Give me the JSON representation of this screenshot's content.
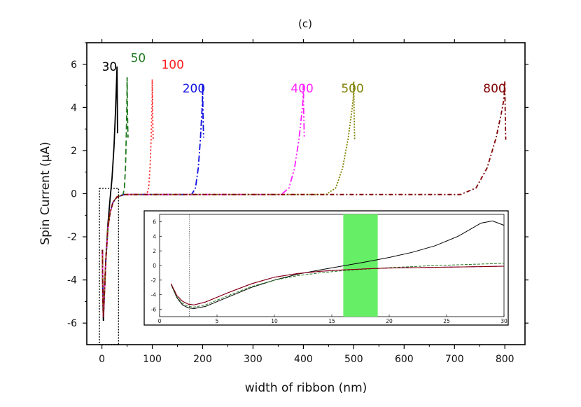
{
  "chart_data": {
    "type": "line",
    "title": "(c)",
    "xlabel": "width of ribbon (nm)",
    "ylabel": "Spin Current (μA)",
    "xlim": [
      -30,
      840
    ],
    "ylim": [
      -7,
      7
    ],
    "xticks": [
      0,
      100,
      200,
      300,
      400,
      500,
      600,
      700,
      800
    ],
    "yticks": [
      -6,
      -4,
      -2,
      0,
      2,
      4,
      6
    ],
    "series": [
      {
        "name": "30",
        "width": 30,
        "color": "#000000",
        "dash": "",
        "label_x": 0.0,
        "label_y": 5.7,
        "peak": 5.9,
        "end": 2.8
      },
      {
        "name": "50",
        "width": 50,
        "color": "#217a1f",
        "dash": "8,4",
        "label_x": 57,
        "label_y": 6.1,
        "peak": 5.4,
        "end": 2.6
      },
      {
        "name": "100",
        "width": 100,
        "color": "#ff2020",
        "dash": "2,3",
        "label_x": 118,
        "label_y": 5.8,
        "peak": 5.3,
        "end": 2.5
      },
      {
        "name": "200",
        "width": 200,
        "color": "#1010e0",
        "dash": "9,3,2,3",
        "label_x": 160,
        "label_y": 4.7,
        "peak": 5.1,
        "end": 2.6
      },
      {
        "name": "400",
        "width": 400,
        "color": "#ff20ff",
        "dash": "9,3,2,3,2,3",
        "label_x": 375,
        "label_y": 4.7,
        "peak": 5.1,
        "end": 2.6
      },
      {
        "name": "500",
        "width": 500,
        "color": "#808000",
        "dash": "2,2",
        "label_x": 475,
        "label_y": 4.7,
        "peak": 5.2,
        "end": 2.5
      },
      {
        "name": "800",
        "width": 800,
        "color": "#800000",
        "dash": "6,3,2,3",
        "label_x": 757,
        "label_y": 4.7,
        "peak": 5.2,
        "end": 2.5
      }
    ],
    "zoom_box": {
      "x": [
        -5,
        33
      ],
      "y": [
        -7,
        0.25
      ]
    },
    "inset": {
      "xlim": [
        0,
        30
      ],
      "ylim": [
        -7,
        7
      ],
      "xticks": [
        0,
        5,
        10,
        15,
        20,
        25,
        30
      ],
      "yticks": [
        -6,
        -4,
        -2,
        0,
        2,
        4,
        6
      ],
      "vline_x": 2.6,
      "highlight_x": [
        16,
        19
      ],
      "highlight_color": "#66ee66",
      "series": [
        {
          "name": "30",
          "color": "#000000",
          "dash": "",
          "x": [
            1,
            1.5,
            2,
            2.5,
            3,
            4,
            6,
            8,
            10,
            12,
            14,
            16,
            18,
            20,
            22,
            24,
            26,
            27,
            28,
            29,
            30
          ],
          "y": [
            -2.6,
            -4.4,
            -5.4,
            -5.8,
            -5.9,
            -5.6,
            -4.3,
            -3.0,
            -2.0,
            -1.2,
            -0.6,
            -0.05,
            0.5,
            1.1,
            1.8,
            2.7,
            4.0,
            4.9,
            5.8,
            6.1,
            5.5
          ]
        },
        {
          "name": "50",
          "color": "#217a1f",
          "dash": "4,2",
          "x": [
            1,
            1.5,
            2,
            2.5,
            3,
            4,
            6,
            8,
            10,
            12,
            14,
            16,
            18,
            20,
            22,
            24,
            26,
            28,
            30
          ],
          "y": [
            -2.6,
            -4.3,
            -5.2,
            -5.6,
            -5.7,
            -5.4,
            -4.1,
            -2.9,
            -2.0,
            -1.4,
            -1.0,
            -0.7,
            -0.5,
            -0.3,
            -0.15,
            0.0,
            0.1,
            0.2,
            0.3
          ]
        },
        {
          "name": "100",
          "color": "#ff2020",
          "dash": "1.5,1.5",
          "x": [
            1,
            1.5,
            2,
            2.5,
            3,
            4,
            6,
            8,
            10,
            12,
            14,
            16,
            18,
            20,
            22,
            24,
            26,
            28,
            30
          ],
          "y": [
            -2.5,
            -4.1,
            -4.9,
            -5.3,
            -5.4,
            -5.0,
            -3.7,
            -2.5,
            -1.6,
            -1.1,
            -0.8,
            -0.6,
            -0.45,
            -0.35,
            -0.3,
            -0.25,
            -0.2,
            -0.15,
            -0.1
          ]
        },
        {
          "name": "200",
          "color": "#1010e0",
          "dash": "5,2,1.5,2",
          "x": [
            1,
            1.5,
            2,
            2.5,
            3,
            4,
            6,
            8,
            10,
            12,
            14,
            16,
            18,
            20,
            22,
            24,
            26,
            28,
            30
          ],
          "y": [
            -2.5,
            -4.1,
            -4.9,
            -5.3,
            -5.4,
            -5.0,
            -3.7,
            -2.5,
            -1.6,
            -1.1,
            -0.8,
            -0.6,
            -0.45,
            -0.35,
            -0.3,
            -0.25,
            -0.2,
            -0.15,
            -0.1
          ]
        },
        {
          "name": "400",
          "color": "#ff20ff",
          "dash": "5,2,1.5,2,1.5,2",
          "x": [
            1,
            1.5,
            2,
            2.5,
            3,
            4,
            6,
            8,
            10,
            12,
            14,
            16,
            18,
            20,
            22,
            24,
            26,
            28,
            30
          ],
          "y": [
            -2.5,
            -4.1,
            -4.9,
            -5.3,
            -5.4,
            -5.0,
            -3.7,
            -2.5,
            -1.6,
            -1.1,
            -0.8,
            -0.6,
            -0.45,
            -0.35,
            -0.3,
            -0.25,
            -0.2,
            -0.15,
            -0.1
          ]
        },
        {
          "name": "800",
          "color": "#800000",
          "dash": "",
          "x": [
            1,
            1.5,
            2,
            2.5,
            3,
            4,
            6,
            8,
            10,
            12,
            14,
            16,
            18,
            20,
            22,
            24,
            26,
            28,
            30
          ],
          "y": [
            -2.5,
            -4.1,
            -4.9,
            -5.3,
            -5.4,
            -5.0,
            -3.7,
            -2.5,
            -1.6,
            -1.1,
            -0.8,
            -0.6,
            -0.45,
            -0.35,
            -0.3,
            -0.25,
            -0.2,
            -0.15,
            -0.1
          ]
        }
      ]
    }
  }
}
